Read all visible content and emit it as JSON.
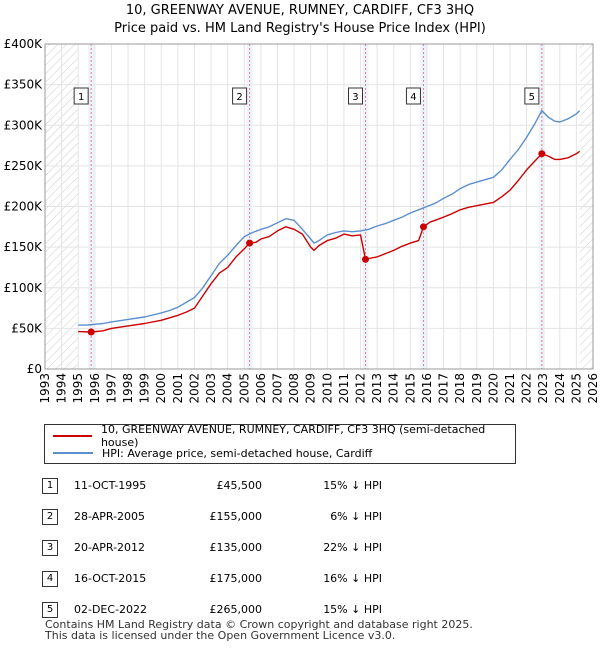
{
  "header": {
    "title": "10, GREENWAY AVENUE, RUMNEY, CARDIFF, CF3 3HQ",
    "subtitle": "Price paid vs. HM Land Registry's House Price Index (HPI)"
  },
  "colors": {
    "price_line": "#cc0000",
    "hpi_line": "#5b8fcf",
    "hatch": "#cccccc",
    "marker_line": "#e08080",
    "shade": "#e6eef8"
  },
  "chart_data": {
    "type": "line",
    "title": "Price paid vs. HM Land Registry's House Price Index (HPI)",
    "xlabel": "",
    "ylabel": "",
    "xlim": [
      1993,
      2026
    ],
    "ylim": [
      0,
      400000
    ],
    "y_ticks": [
      0,
      50000,
      100000,
      150000,
      200000,
      250000,
      300000,
      350000,
      400000
    ],
    "y_tick_labels": [
      "£0",
      "£50K",
      "£100K",
      "£150K",
      "£200K",
      "£250K",
      "£300K",
      "£350K",
      "£400K"
    ],
    "x_ticks": [
      1993,
      1994,
      1995,
      1996,
      1997,
      1998,
      1999,
      2000,
      2001,
      2002,
      2003,
      2004,
      2005,
      2006,
      2007,
      2008,
      2009,
      2010,
      2011,
      2012,
      2013,
      2014,
      2015,
      2016,
      2017,
      2018,
      2019,
      2020,
      2021,
      2022,
      2023,
      2024,
      2025,
      2026
    ],
    "hatched_ranges": [
      [
        1993,
        1995.0
      ],
      [
        2025.2,
        2026
      ]
    ],
    "series": [
      {
        "name": "10, GREENWAY AVENUE, RUMNEY, CARDIFF, CF3 3HQ (semi-detached house)",
        "x": [
          1995.0,
          1995.78,
          1996.5,
          1997,
          1998,
          1999,
          2000,
          2000.5,
          2001,
          2001.5,
          2002,
          2002.5,
          2003,
          2003.5,
          2004,
          2004.5,
          2005.0,
          2005.32,
          2005.7,
          2006,
          2006.5,
          2007,
          2007.5,
          2008,
          2008.5,
          2009,
          2009.2,
          2009.5,
          2010,
          2010.5,
          2011,
          2011.5,
          2012.0,
          2012.3,
          2012.5,
          2013,
          2013.5,
          2014,
          2014.5,
          2015,
          2015.5,
          2015.79,
          2016.2,
          2016.5,
          2017,
          2017.5,
          2018,
          2018.5,
          2019,
          2019.5,
          2020,
          2020.5,
          2021,
          2021.5,
          2022,
          2022.5,
          2022.92,
          2023.3,
          2023.7,
          2024,
          2024.5,
          2025,
          2025.2
        ],
        "values": [
          46000,
          45500,
          47000,
          50000,
          53000,
          56000,
          60000,
          63000,
          66000,
          70000,
          75000,
          90000,
          105000,
          118000,
          125000,
          138000,
          148000,
          155000,
          156000,
          160000,
          163000,
          170000,
          175000,
          172000,
          166000,
          150000,
          146000,
          152000,
          158000,
          161000,
          166000,
          164000,
          165000,
          135000,
          136000,
          138000,
          142000,
          146000,
          151000,
          155000,
          158000,
          175000,
          181000,
          183000,
          187000,
          191000,
          196000,
          199000,
          201000,
          203000,
          205000,
          212000,
          220000,
          232000,
          245000,
          256000,
          265000,
          262000,
          258000,
          258000,
          260000,
          265000,
          268000
        ]
      },
      {
        "name": "HPI: Average price, semi-detached house, Cardiff",
        "x": [
          1995.0,
          1995.5,
          1996,
          1996.5,
          1997,
          1998,
          1999,
          2000,
          2000.5,
          2001,
          2001.5,
          2002,
          2002.5,
          2003,
          2003.5,
          2004,
          2004.5,
          2005,
          2005.5,
          2006,
          2006.5,
          2007,
          2007.5,
          2008,
          2008.5,
          2009,
          2009.2,
          2009.5,
          2010,
          2010.5,
          2011,
          2011.5,
          2012,
          2012.5,
          2013,
          2013.5,
          2014,
          2014.5,
          2015,
          2015.5,
          2016,
          2016.5,
          2017,
          2017.5,
          2018,
          2018.5,
          2019,
          2019.5,
          2020,
          2020.5,
          2021,
          2021.5,
          2022,
          2022.5,
          2022.92,
          2023.3,
          2023.7,
          2024,
          2024.5,
          2025,
          2025.2
        ],
        "values": [
          54000,
          54000,
          55000,
          56000,
          58000,
          61000,
          64000,
          69000,
          72000,
          76000,
          82000,
          88000,
          100000,
          115000,
          130000,
          140000,
          152000,
          163000,
          168000,
          172000,
          175000,
          180000,
          185000,
          183000,
          172000,
          160000,
          155000,
          158000,
          165000,
          168000,
          170000,
          169000,
          170000,
          172000,
          176000,
          179000,
          183000,
          187000,
          192000,
          196000,
          200000,
          204000,
          210000,
          215000,
          222000,
          227000,
          230000,
          233000,
          236000,
          245000,
          258000,
          270000,
          285000,
          302000,
          318000,
          310000,
          305000,
          304000,
          308000,
          314000,
          318000
        ]
      }
    ],
    "transactions": [
      {
        "label": "1",
        "x": 1995.78,
        "price": 45500
      },
      {
        "label": "2",
        "x": 2005.32,
        "price": 155000
      },
      {
        "label": "3",
        "x": 2012.3,
        "price": 135000
      },
      {
        "label": "4",
        "x": 2015.79,
        "price": 175000
      },
      {
        "label": "5",
        "x": 2022.92,
        "price": 265000
      }
    ],
    "legend_position": "below"
  },
  "legend": {
    "price_label": "10, GREENWAY AVENUE, RUMNEY, CARDIFF, CF3 3HQ (semi-detached house)",
    "hpi_label": "HPI: Average price, semi-detached house, Cardiff"
  },
  "table": {
    "rows": [
      {
        "num": "1",
        "date": "11-OCT-1995",
        "price": "£45,500",
        "hpi": "15% ↓ HPI"
      },
      {
        "num": "2",
        "date": "28-APR-2005",
        "price": "£155,000",
        "hpi": "6% ↓ HPI"
      },
      {
        "num": "3",
        "date": "20-APR-2012",
        "price": "£135,000",
        "hpi": "22% ↓ HPI"
      },
      {
        "num": "4",
        "date": "16-OCT-2015",
        "price": "£175,000",
        "hpi": "16% ↓ HPI"
      },
      {
        "num": "5",
        "date": "02-DEC-2022",
        "price": "£265,000",
        "hpi": "15% ↓ HPI"
      }
    ]
  },
  "footer": {
    "line1": "Contains HM Land Registry data © Crown copyright and database right 2025.",
    "line2": "This data is licensed under the Open Government Licence v3.0."
  }
}
